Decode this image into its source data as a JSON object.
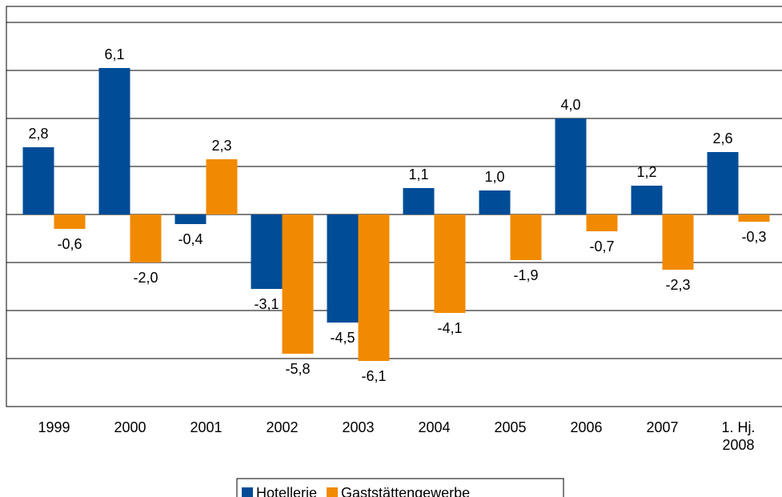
{
  "chart_data": {
    "type": "bar",
    "categories": [
      "1999",
      "2000",
      "2001",
      "2002",
      "2003",
      "2004",
      "2005",
      "2006",
      "2007",
      "1. Hj.\n2008"
    ],
    "series": [
      {
        "name": "Hotellerie",
        "color": "#004c97",
        "values": [
          2.8,
          6.1,
          -0.4,
          -3.1,
          -4.5,
          1.1,
          1.0,
          4.0,
          1.2,
          2.6
        ],
        "value_labels": [
          "2,8",
          "6,1",
          "-0,4",
          "-3,1",
          "-4,5",
          "1,1",
          "1,0",
          "4,0",
          "1,2",
          "2,6"
        ]
      },
      {
        "name": "Gaststättengewerbe",
        "color": "#f18a00",
        "values": [
          -0.6,
          -2.0,
          2.3,
          -5.8,
          -6.1,
          -4.1,
          -1.9,
          -0.7,
          -2.3,
          -0.3
        ],
        "value_labels": [
          "-0,6",
          "-2,0",
          "2,3",
          "-5,8",
          "-6,1",
          "-4,1",
          "-1,9",
          "-0,7",
          "-2,3",
          "-0,3"
        ]
      }
    ],
    "ylim": [
      -8,
      8
    ],
    "yticks": [
      -6,
      -4,
      -2,
      0,
      2,
      4,
      6,
      8
    ],
    "grid": true,
    "legend": "bottom"
  }
}
